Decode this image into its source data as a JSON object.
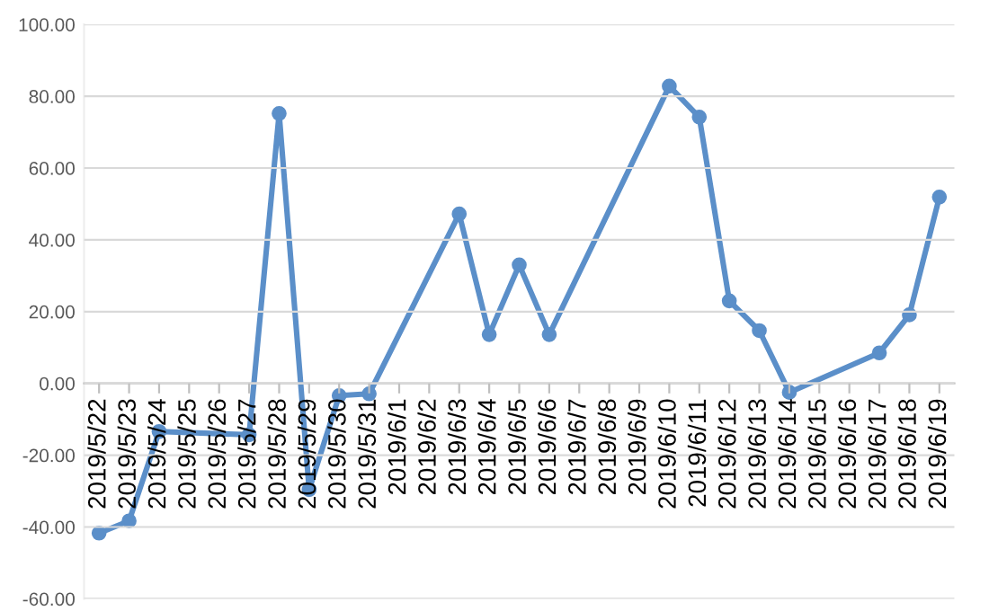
{
  "chart_data": {
    "type": "line",
    "x": [
      "2019-05-22",
      "2019-05-23",
      "2019-05-24",
      "2019-05-27",
      "2019-05-28",
      "2019-05-29",
      "2019-05-30",
      "2019-05-31",
      "2019-06-03",
      "2019-06-04",
      "2019-06-05",
      "2019-06-06",
      "2019-06-10",
      "2019-06-11",
      "2019-06-12",
      "2019-06-13",
      "2019-06-14",
      "2019-06-17",
      "2019-06-18",
      "2019-06-19"
    ],
    "series": [
      {
        "color": "#5b8fc9",
        "values": [
          -41.7,
          -38.3,
          -13.4,
          -14.3,
          75.2,
          -29.6,
          -3.4,
          -2.9,
          47.2,
          13.6,
          33.0,
          13.6,
          82.8,
          74.2,
          23.0,
          14.7,
          -2.5,
          8.5,
          19.1,
          51.9
        ]
      }
    ],
    "xlim": [
      "2019-05-21T12:00",
      "2019-06-19T12:00"
    ],
    "xticks": [
      {
        "value": "2019-05-22",
        "label": "2019/5/22"
      },
      {
        "value": "2019-05-23",
        "label": "2019/5/23"
      },
      {
        "value": "2019-05-24",
        "label": "2019/5/24"
      },
      {
        "value": "2019-05-25",
        "label": "2019/5/25"
      },
      {
        "value": "2019-05-26",
        "label": "2019/5/26"
      },
      {
        "value": "2019-05-27",
        "label": "2019/5/27"
      },
      {
        "value": "2019-05-28",
        "label": "2019/5/28"
      },
      {
        "value": "2019-05-29",
        "label": "2019/5/29"
      },
      {
        "value": "2019-05-30",
        "label": "2019/5/30"
      },
      {
        "value": "2019-05-31",
        "label": "2019/5/31"
      },
      {
        "value": "2019-06-01",
        "label": "2019/6/1"
      },
      {
        "value": "2019-06-02",
        "label": "2019/6/2"
      },
      {
        "value": "2019-06-03",
        "label": "2019/6/3"
      },
      {
        "value": "2019-06-04",
        "label": "2019/6/4"
      },
      {
        "value": "2019-06-05",
        "label": "2019/6/5"
      },
      {
        "value": "2019-06-06",
        "label": "2019/6/6"
      },
      {
        "value": "2019-06-07",
        "label": "2019/6/7"
      },
      {
        "value": "2019-06-08",
        "label": "2019/6/8"
      },
      {
        "value": "2019-06-09",
        "label": "2019/6/9"
      },
      {
        "value": "2019-06-10",
        "label": "2019/6/10"
      },
      {
        "value": "2019-06-11",
        "label": "2019/6/11"
      },
      {
        "value": "2019-06-12",
        "label": "2019/6/12"
      },
      {
        "value": "2019-06-13",
        "label": "2019/6/13"
      },
      {
        "value": "2019-06-14",
        "label": "2019/6/14"
      },
      {
        "value": "2019-06-15",
        "label": "2019/6/15"
      },
      {
        "value": "2019-06-16",
        "label": "2019/6/16"
      },
      {
        "value": "2019-06-17",
        "label": "2019/6/17"
      },
      {
        "value": "2019-06-18",
        "label": "2019/6/18"
      },
      {
        "value": "2019-06-19",
        "label": "2019/6/19"
      }
    ],
    "ylim": [
      -60,
      100
    ],
    "yticks": [
      {
        "value": -60,
        "label": "-60.00"
      },
      {
        "value": -40,
        "label": "-40.00"
      },
      {
        "value": -20,
        "label": "-20.00"
      },
      {
        "value": 0,
        "label": "0.00"
      },
      {
        "value": 20,
        "label": "20.00"
      },
      {
        "value": 40,
        "label": "40.00"
      },
      {
        "value": 60,
        "label": "60.00"
      },
      {
        "value": 80,
        "label": "80.00"
      },
      {
        "value": 100,
        "label": "100.00"
      }
    ],
    "grid": "y",
    "marker": "circle",
    "line_style": "solid"
  }
}
